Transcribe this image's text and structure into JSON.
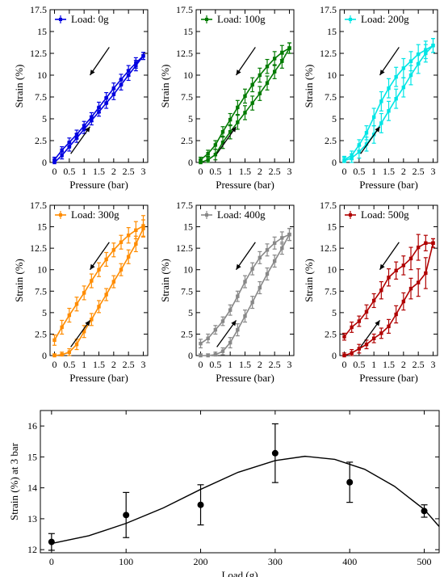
{
  "chart_data": [
    {
      "type": "line",
      "legend": "Load: 0g",
      "color": "#0000e0",
      "xlabel": "Pressure (bar)",
      "ylabel": "Strain (%)",
      "xlim": [
        -0.15,
        3.15
      ],
      "ylim": [
        0,
        17.5
      ],
      "xticks": [
        "0",
        "0.5",
        "1",
        "1.5",
        "2",
        "2.5",
        "3"
      ],
      "yticks": [
        "0",
        "2.5",
        "5",
        "7.5",
        "10",
        "12.5",
        "15",
        "17.5"
      ],
      "series": [
        {
          "direction": "loading",
          "x": [
            0,
            0.25,
            0.5,
            0.75,
            1,
            1.25,
            1.5,
            1.75,
            2,
            2.25,
            2.5,
            2.75,
            3
          ],
          "y": [
            0,
            0.8,
            1.8,
            2.8,
            3.8,
            4.8,
            5.8,
            6.8,
            7.8,
            8.9,
            10,
            11.1,
            12.2
          ],
          "err": [
            0.3,
            0.4,
            0.5,
            0.5,
            0.5,
            0.5,
            0.5,
            0.6,
            0.6,
            0.6,
            0.6,
            0.6,
            0.4
          ]
        },
        {
          "direction": "unloading",
          "x": [
            3,
            2.75,
            2.5,
            2.25,
            2,
            1.75,
            1.5,
            1.25,
            1,
            0.75,
            0.5,
            0.25,
            0
          ],
          "y": [
            12.2,
            11.4,
            10.5,
            9.5,
            8.5,
            7.4,
            6.3,
            5.2,
            4.2,
            3.2,
            2.3,
            1.4,
            0.3
          ],
          "err": [
            0.4,
            0.6,
            0.6,
            0.6,
            0.6,
            0.6,
            0.6,
            0.5,
            0.5,
            0.5,
            0.5,
            0.4,
            0.3
          ]
        }
      ]
    },
    {
      "type": "line",
      "legend": "Load: 100g",
      "color": "#007a00",
      "xlabel": "Pressure (bar)",
      "ylabel": "Strain (%)",
      "xlim": [
        -0.15,
        3.15
      ],
      "ylim": [
        0,
        17.5
      ],
      "xticks": [
        "0",
        "0.5",
        "1",
        "1.5",
        "2",
        "2.5",
        "3"
      ],
      "yticks": [
        "0",
        "2.5",
        "5",
        "7.5",
        "10",
        "12.5",
        "15",
        "17.5"
      ],
      "series": [
        {
          "direction": "loading",
          "x": [
            0,
            0.25,
            0.5,
            0.75,
            1,
            1.25,
            1.5,
            1.75,
            2,
            2.25,
            2.5,
            2.75,
            3
          ],
          "y": [
            0,
            0.3,
            0.9,
            2.3,
            3.5,
            4.6,
            5.7,
            6.8,
            7.9,
            9.1,
            10.4,
            11.6,
            13.1
          ],
          "err": [
            0.3,
            0.4,
            0.6,
            0.7,
            0.8,
            0.8,
            0.8,
            0.8,
            0.8,
            0.8,
            0.8,
            0.8,
            0.6
          ]
        },
        {
          "direction": "unloading",
          "x": [
            3,
            2.75,
            2.5,
            2.25,
            2,
            1.75,
            1.5,
            1.25,
            1,
            0.75,
            0.5,
            0.25,
            0
          ],
          "y": [
            13.1,
            12.6,
            11.9,
            11,
            10,
            8.9,
            7.6,
            6.3,
            4.9,
            3.5,
            2,
            1,
            0.3
          ],
          "err": [
            0.6,
            0.8,
            0.8,
            0.8,
            0.8,
            0.8,
            0.8,
            0.8,
            0.7,
            0.6,
            0.5,
            0.4,
            0.3
          ]
        }
      ]
    },
    {
      "type": "line",
      "legend": "Load: 200g",
      "color": "#00e5e5",
      "xlabel": "Pressure (bar)",
      "ylabel": "Strain (%)",
      "xlim": [
        -0.15,
        3.15
      ],
      "ylim": [
        0,
        17.5
      ],
      "xticks": [
        "0",
        "0.5",
        "1",
        "1.5",
        "2",
        "2.5",
        "3"
      ],
      "yticks": [
        "0",
        "2.5",
        "5",
        "7.5",
        "10",
        "12.5",
        "15",
        "17.5"
      ],
      "series": [
        {
          "direction": "loading",
          "x": [
            0,
            0.25,
            0.5,
            0.75,
            1,
            1.25,
            1.5,
            1.75,
            2,
            2.25,
            2.5,
            2.75,
            3
          ],
          "y": [
            0.2,
            0.5,
            1.2,
            2.1,
            3.2,
            4.5,
            5.9,
            7.3,
            8.6,
            10,
            11.3,
            12.5,
            13.4
          ],
          "err": [
            0.4,
            0.5,
            0.7,
            0.8,
            1,
            1.1,
            1.1,
            1.1,
            1.1,
            1.1,
            1.1,
            1,
            0.8
          ]
        },
        {
          "direction": "unloading",
          "x": [
            3,
            2.75,
            2.5,
            2.25,
            2,
            1.75,
            1.5,
            1.25,
            1,
            0.75,
            0.5,
            0.25,
            0
          ],
          "y": [
            13.4,
            12.9,
            12.4,
            11.6,
            10.8,
            9.8,
            8.5,
            7,
            5.2,
            3.4,
            2,
            0.8,
            0.3
          ],
          "err": [
            0.8,
            1,
            1.1,
            1.1,
            1.1,
            1.1,
            1.1,
            1.1,
            1,
            0.8,
            0.6,
            0.5,
            0.4
          ]
        }
      ]
    },
    {
      "type": "line",
      "legend": "Load: 300g",
      "color": "#ff8c00",
      "xlabel": "Pressure (bar)",
      "ylabel": "Strain (%)",
      "xlim": [
        -0.15,
        3.15
      ],
      "ylim": [
        0,
        17.5
      ],
      "xticks": [
        "0",
        "0.5",
        "1",
        "1.5",
        "2",
        "2.5",
        "3"
      ],
      "yticks": [
        "0",
        "2.5",
        "5",
        "7.5",
        "10",
        "12.5",
        "15",
        "17.5"
      ],
      "series": [
        {
          "direction": "loading",
          "x": [
            0,
            0.25,
            0.5,
            0.75,
            1,
            1.25,
            1.5,
            1.75,
            2,
            2.25,
            2.5,
            2.75,
            3
          ],
          "y": [
            0,
            0.1,
            0.4,
            1.3,
            2.8,
            4.2,
            5.7,
            7.1,
            8.6,
            10,
            11.5,
            13,
            14.8
          ],
          "err": [
            0.2,
            0.3,
            0.4,
            0.6,
            0.7,
            0.7,
            0.7,
            0.7,
            0.7,
            0.7,
            0.8,
            0.9,
            1
          ]
        },
        {
          "direction": "unloading",
          "x": [
            3,
            2.75,
            2.5,
            2.25,
            2,
            1.75,
            1.5,
            1.25,
            1,
            0.75,
            0.5,
            0.25,
            0
          ],
          "y": [
            15.1,
            14.6,
            14,
            13.2,
            12.3,
            11.2,
            10,
            8.7,
            7.3,
            6,
            4.7,
            3.3,
            1.8
          ],
          "err": [
            1.2,
            1,
            0.9,
            0.8,
            0.8,
            0.8,
            0.8,
            0.8,
            0.8,
            0.8,
            0.8,
            0.8,
            0.6
          ]
        }
      ]
    },
    {
      "type": "line",
      "legend": "Load: 400g",
      "color": "#888888",
      "xlabel": "Pressure (bar)",
      "ylabel": "Strain (%)",
      "xlim": [
        -0.15,
        3.15
      ],
      "ylim": [
        0,
        17.5
      ],
      "xticks": [
        "0",
        "0.5",
        "1",
        "1.5",
        "2",
        "2.5",
        "3"
      ],
      "yticks": [
        "0",
        "2.5",
        "5",
        "7.5",
        "10",
        "12.5",
        "15",
        "17.5"
      ],
      "series": [
        {
          "direction": "loading",
          "x": [
            0,
            0.25,
            0.5,
            0.75,
            1,
            1.25,
            1.5,
            1.75,
            2,
            2.25,
            2.5,
            2.75,
            3
          ],
          "y": [
            0,
            0,
            0.1,
            0.5,
            1.5,
            3,
            4.6,
            6.2,
            7.9,
            9.5,
            11,
            12.5,
            14.1
          ],
          "err": [
            0.2,
            0.2,
            0.3,
            0.4,
            0.6,
            0.7,
            0.7,
            0.7,
            0.7,
            0.7,
            0.7,
            0.7,
            0.7
          ]
        },
        {
          "direction": "unloading",
          "x": [
            3,
            2.75,
            2.5,
            2.25,
            2,
            1.75,
            1.5,
            1.25,
            1,
            0.75,
            0.5,
            0.25,
            0
          ],
          "y": [
            14.1,
            13.7,
            13.1,
            12.3,
            11.4,
            10.1,
            8.6,
            6.9,
            5.3,
            4,
            3,
            2,
            1.4
          ],
          "err": [
            0.7,
            0.7,
            0.7,
            0.7,
            0.7,
            0.7,
            0.7,
            0.6,
            0.6,
            0.5,
            0.5,
            0.5,
            0.5
          ]
        }
      ]
    },
    {
      "type": "line",
      "legend": "Load: 500g",
      "color": "#b00000",
      "xlabel": "Pressure (bar)",
      "ylabel": "Strain (%)",
      "xlim": [
        -0.15,
        3.15
      ],
      "ylim": [
        0,
        17.5
      ],
      "xticks": [
        "0",
        "0.5",
        "1",
        "1.5",
        "2",
        "2.5",
        "3"
      ],
      "yticks": [
        "0",
        "2.5",
        "5",
        "7.5",
        "10",
        "12.5",
        "15",
        "17.5"
      ],
      "series": [
        {
          "direction": "loading",
          "x": [
            0,
            0.25,
            0.5,
            0.75,
            1,
            1.25,
            1.5,
            1.75,
            2,
            2.25,
            2.5,
            2.75,
            3
          ],
          "y": [
            0,
            0.3,
            0.8,
            1.3,
            2,
            2.6,
            3.4,
            4.8,
            6.3,
            7.8,
            8.5,
            9.6,
            13.1
          ],
          "err": [
            0.3,
            0.4,
            0.5,
            0.5,
            0.5,
            0.6,
            0.8,
            1,
            1,
            1.2,
            1.6,
            1.8,
            0.5
          ]
        },
        {
          "direction": "unloading",
          "x": [
            3,
            2.75,
            2.5,
            2.25,
            2,
            1.75,
            1.5,
            1.25,
            1,
            0.75,
            0.5,
            0.25,
            0
          ],
          "y": [
            13.1,
            13.1,
            12.6,
            11.3,
            10.5,
            9.9,
            9.1,
            7.6,
            6.4,
            5.1,
            4,
            3.3,
            2.2
          ],
          "err": [
            0.5,
            0.9,
            1.5,
            1.3,
            1.1,
            1,
            1,
            1,
            0.8,
            0.8,
            0.6,
            0.6,
            0.4
          ]
        }
      ]
    },
    {
      "type": "scatter",
      "legend": "",
      "color": "#000000",
      "xlabel": "Load (g)",
      "ylabel": "Strain (%) at 3 bar",
      "xlim": [
        -15,
        520
      ],
      "ylim": [
        11.9,
        16.5
      ],
      "xticks": [
        "0",
        "100",
        "200",
        "300",
        "400",
        "500"
      ],
      "yticks": [
        "12",
        "13",
        "14",
        "15",
        "16"
      ],
      "points": {
        "x": [
          0,
          100,
          200,
          300,
          400,
          500
        ],
        "y": [
          12.25,
          13.12,
          13.45,
          15.12,
          14.18,
          13.25
        ],
        "err": [
          0.27,
          0.73,
          0.65,
          0.95,
          0.65,
          0.2
        ]
      },
      "fit_curve": {
        "x": [
          0,
          50,
          100,
          150,
          200,
          250,
          300,
          340,
          380,
          420,
          460,
          500,
          520
        ],
        "y": [
          12.2,
          12.45,
          12.85,
          13.35,
          13.95,
          14.5,
          14.88,
          15.02,
          14.92,
          14.6,
          14.05,
          13.3,
          12.75
        ]
      }
    }
  ]
}
